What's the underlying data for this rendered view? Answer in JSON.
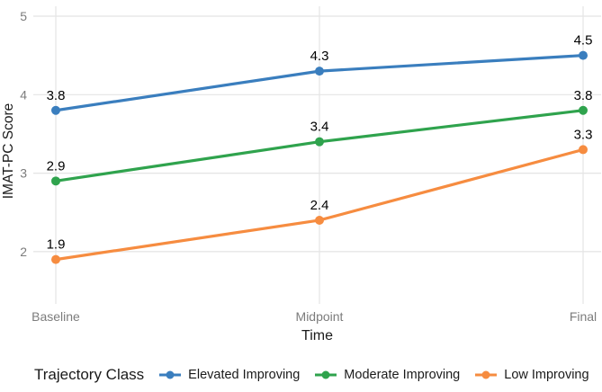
{
  "chart_data": {
    "type": "line",
    "title": "",
    "xlabel": "Time",
    "ylabel": "IMAT-PC Score",
    "x_categories": [
      "Baseline",
      "Midpoint",
      "Final"
    ],
    "y_ticks": [
      2,
      3,
      4,
      5
    ],
    "ylim": [
      1.3,
      5.15
    ],
    "grid": true,
    "point_labels": true,
    "legend_position": "bottom",
    "legend_title": "Trajectory Class",
    "series": [
      {
        "name": "Elevated Improving",
        "color": "#3A7EBE",
        "values": [
          3.8,
          4.3,
          4.5
        ]
      },
      {
        "name": "Moderate Improving",
        "color": "#2FA34D",
        "values": [
          2.9,
          3.4,
          3.8
        ]
      },
      {
        "name": "Low Improving",
        "color": "#F68C40",
        "values": [
          1.9,
          2.4,
          3.3
        ]
      }
    ]
  },
  "colors": {
    "background": "#FFFFFF",
    "gridline": "#E4E4E4",
    "tick_label": "#7C7C7C",
    "axis_title": "#1A1A1A",
    "data_label": "#000000"
  }
}
